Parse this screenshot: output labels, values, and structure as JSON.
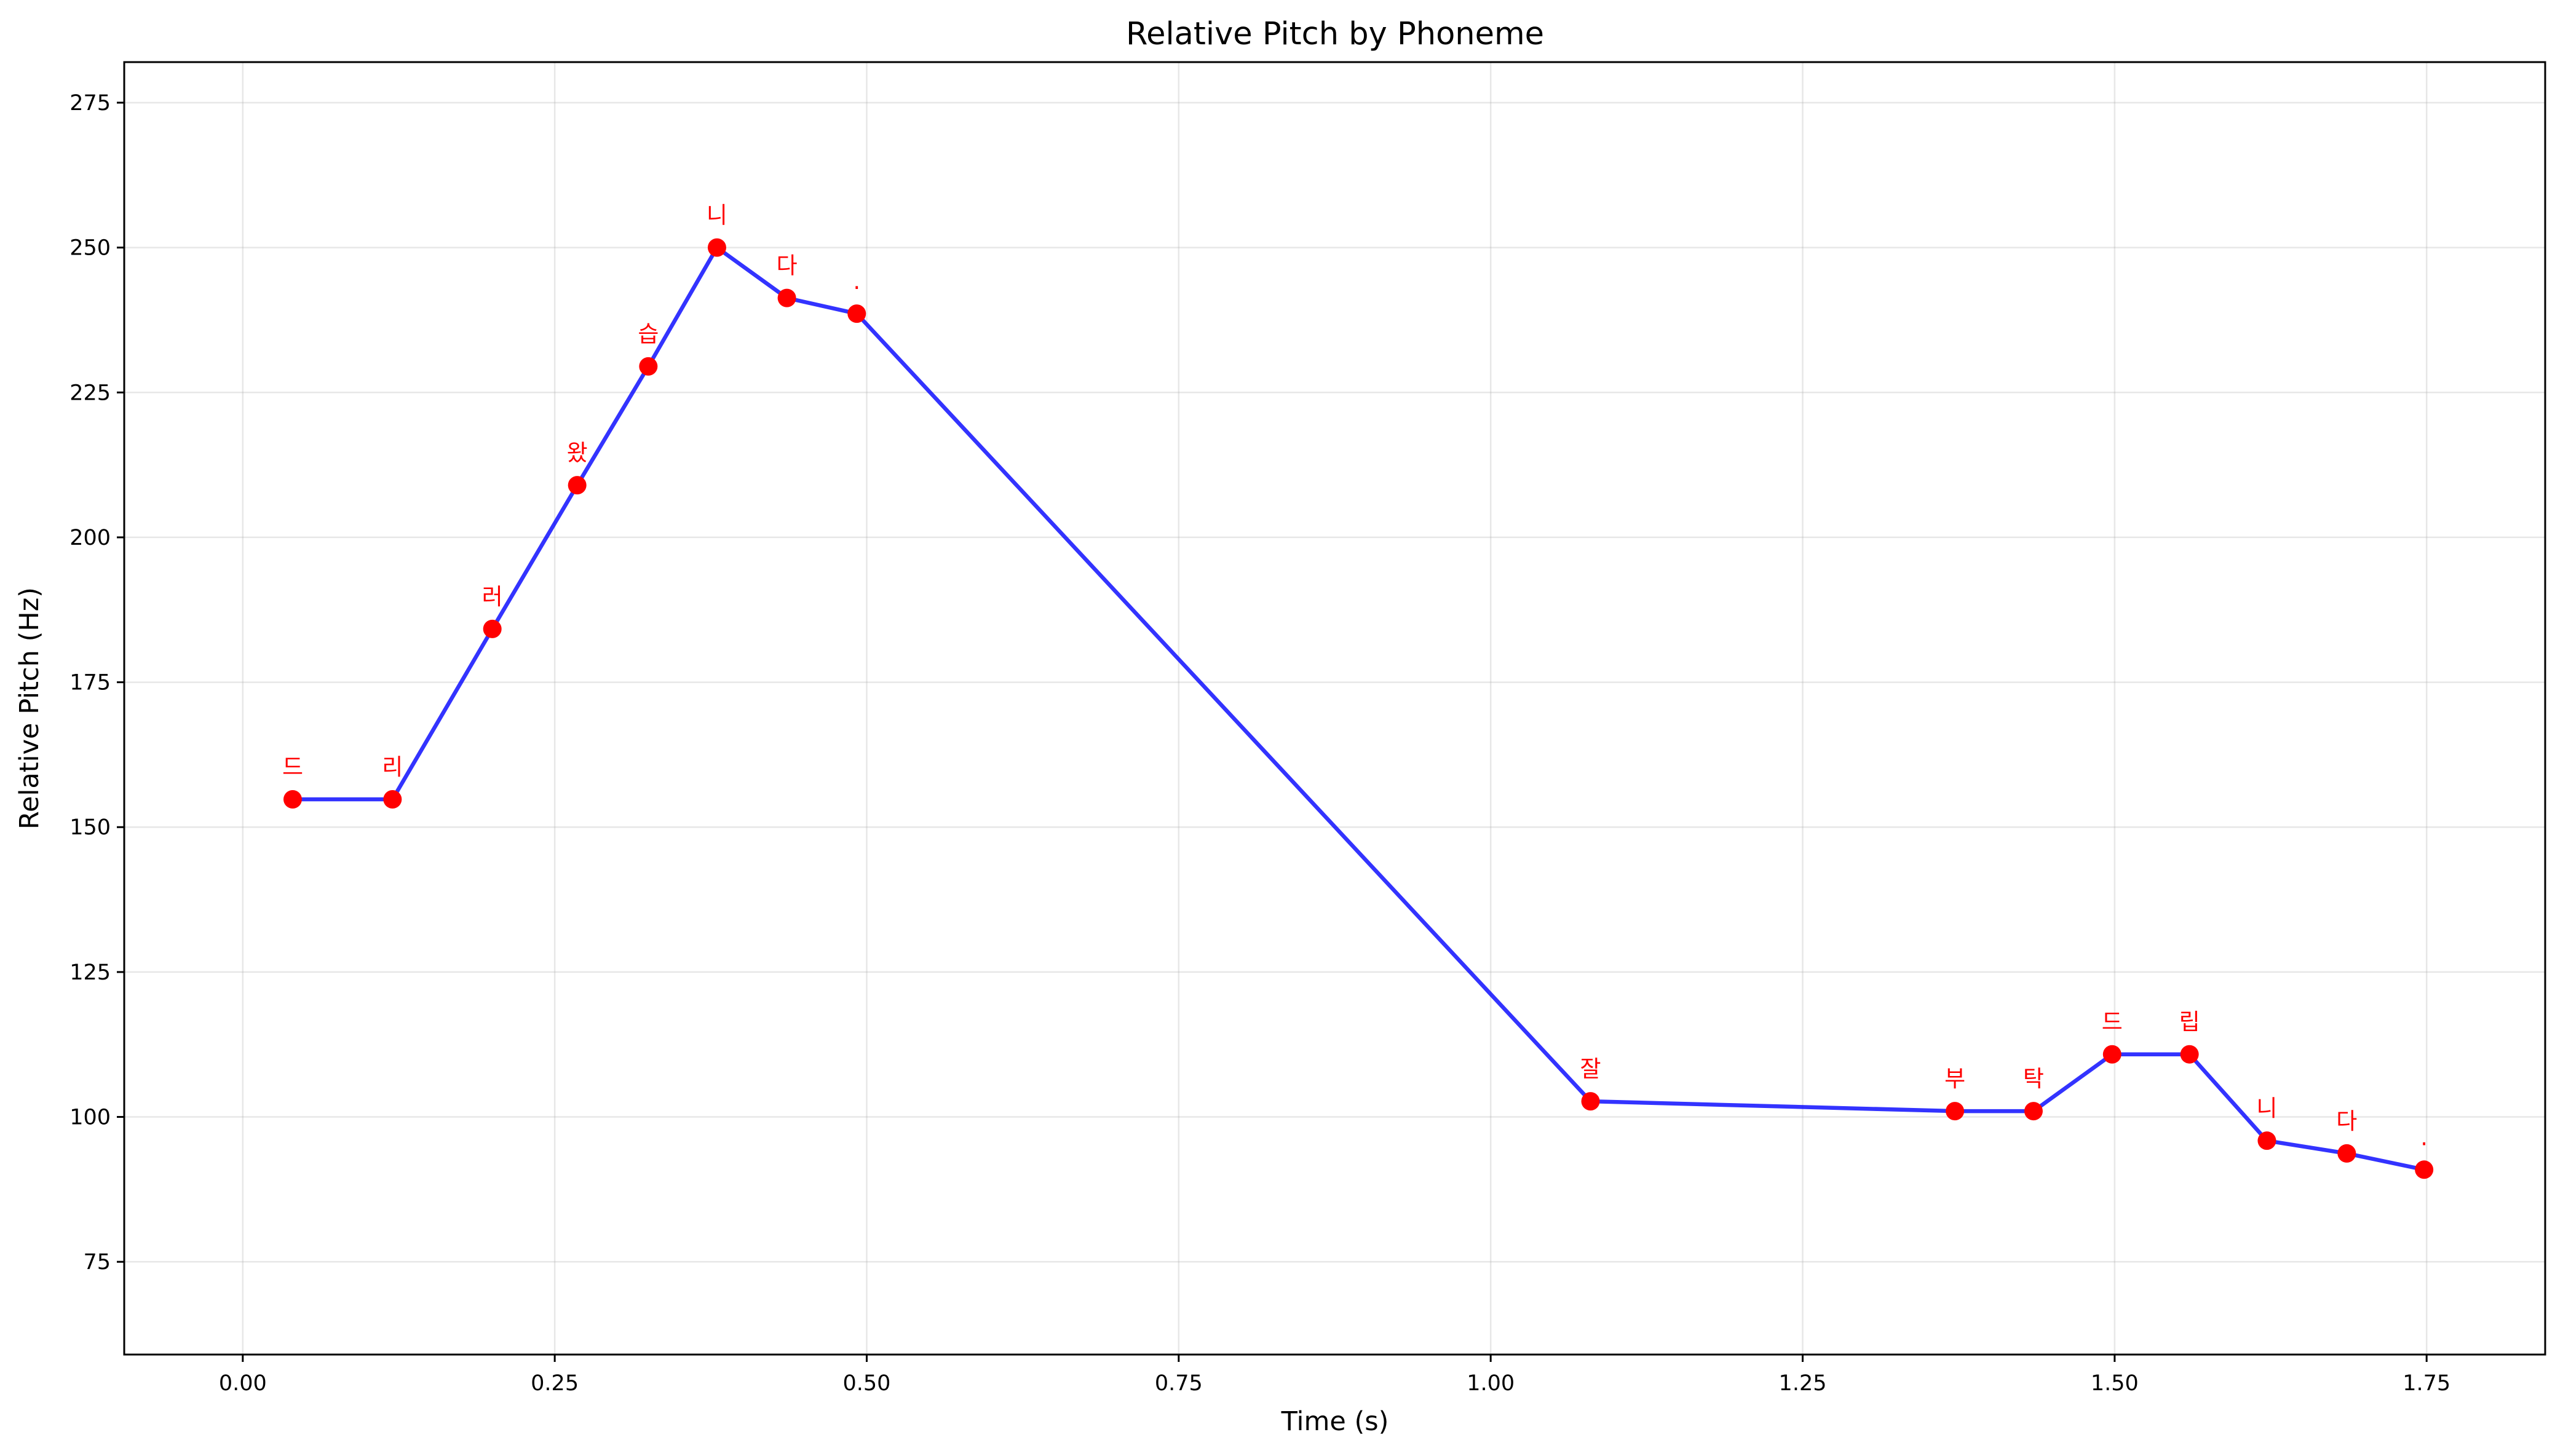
{
  "chart_data": {
    "type": "line",
    "title": "Relative Pitch by Phoneme",
    "xlabel": "Time (s)",
    "ylabel": "Relative Pitch (Hz)",
    "xlim": [
      -0.095,
      1.845
    ],
    "ylim": [
      59,
      282
    ],
    "xticks": [
      0.0,
      0.25,
      0.5,
      0.75,
      1.0,
      1.25,
      1.5,
      1.75
    ],
    "xtick_labels": [
      "0.00",
      "0.25",
      "0.50",
      "0.75",
      "1.00",
      "1.25",
      "1.50",
      "1.75"
    ],
    "yticks": [
      75,
      100,
      125,
      150,
      175,
      200,
      225,
      250,
      275
    ],
    "ytick_labels": [
      "75",
      "100",
      "125",
      "150",
      "175",
      "200",
      "225",
      "250",
      "275"
    ],
    "grid": true,
    "legend": "none",
    "line_color": "#0000ff",
    "marker_color": "#ff0000",
    "label_color": "#ff0000",
    "points": [
      {
        "x": 0.04,
        "y": 154.8,
        "label": "드"
      },
      {
        "x": 0.12,
        "y": 154.8,
        "label": "리"
      },
      {
        "x": 0.2,
        "y": 184.2,
        "label": "러"
      },
      {
        "x": 0.268,
        "y": 209.0,
        "label": "왔"
      },
      {
        "x": 0.325,
        "y": 229.5,
        "label": "습"
      },
      {
        "x": 0.38,
        "y": 250.0,
        "label": "니"
      },
      {
        "x": 0.436,
        "y": 241.3,
        "label": "다"
      },
      {
        "x": 0.492,
        "y": 238.6,
        "label": "."
      },
      {
        "x": 1.08,
        "y": 102.7,
        "label": "잘"
      },
      {
        "x": 1.372,
        "y": 101.0,
        "label": "부"
      },
      {
        "x": 1.435,
        "y": 101.0,
        "label": "탁"
      },
      {
        "x": 1.498,
        "y": 110.8,
        "label": "드"
      },
      {
        "x": 1.56,
        "y": 110.8,
        "label": "립"
      },
      {
        "x": 1.622,
        "y": 95.9,
        "label": "니"
      },
      {
        "x": 1.686,
        "y": 93.7,
        "label": "다"
      },
      {
        "x": 1.748,
        "y": 90.9,
        "label": "."
      }
    ]
  }
}
